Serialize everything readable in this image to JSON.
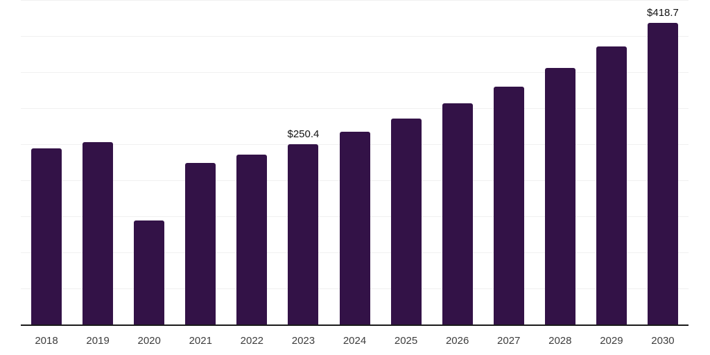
{
  "chart": {
    "background_color": "#ffffff",
    "bar_color": "#331247",
    "grid_color": "#f0f0f0",
    "axis_color": "#1a1a1a",
    "data_label_color": "#111111",
    "tick_label_color": "#3d3d3d"
  },
  "chart_data": {
    "type": "bar",
    "categories": [
      "2018",
      "2019",
      "2020",
      "2021",
      "2022",
      "2023",
      "2024",
      "2025",
      "2026",
      "2027",
      "2028",
      "2029",
      "2030"
    ],
    "values": [
      244.0,
      252.5,
      144.0,
      224.0,
      236.0,
      250.4,
      267.5,
      285.5,
      306.5,
      330.0,
      356.0,
      385.5,
      418.7
    ],
    "data_labels": {
      "2023": "$250.4",
      "2030": "$418.7"
    },
    "title": "",
    "xlabel": "",
    "ylabel": "",
    "ylim": [
      0,
      450
    ],
    "gridline_step": 50,
    "grid": true,
    "legend": false,
    "y_axis_labels_visible": false
  }
}
